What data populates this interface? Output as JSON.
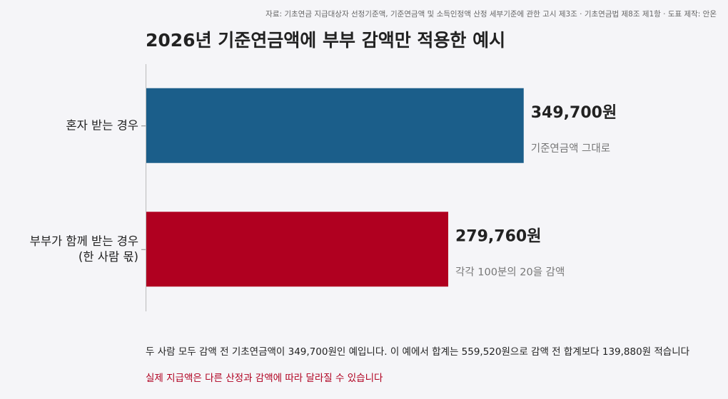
{
  "chart_data": {
    "type": "hbar",
    "source": "자료: 기초연금 지급대상자 선정기준액, 기준연금액 및 소득인정액 산정 세부기준에 관한 고시 제3조 · 기초연금법 제8조 제1항 · 도표 제작: 안온",
    "title": "2026년 기준연금액에 부부 감액만 적용한 예시",
    "categories": [
      [
        "혼자 받는 경우"
      ],
      [
        "부부가 함께 받는 경우",
        "(한 사람 몫)"
      ]
    ],
    "values": [
      349700,
      279760
    ],
    "value_labels": [
      "349,700원",
      "279,760원"
    ],
    "annotations": [
      "기준연금액 그대로",
      "각각 100분의 20을 감액"
    ],
    "colors": [
      "#1b5e8a",
      "#b00020"
    ],
    "xlim": [
      0,
      500000
    ],
    "notes": [
      "두 사람 모두 감액 전 기초연금액이 349,700원인 예입니다. 이 예에서 합계는 559,520원으로 감액 전 합계보다 139,880원 적습니다",
      "실제 지급액은 다른 산정과 감액에 따라 달라질 수 있습니다"
    ]
  }
}
